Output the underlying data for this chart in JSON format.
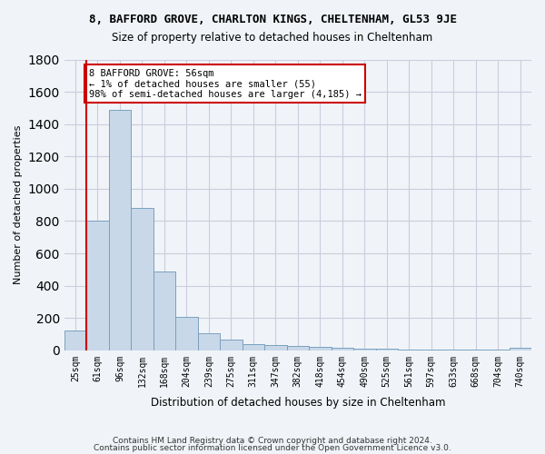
{
  "title1": "8, BAFFORD GROVE, CHARLTON KINGS, CHELTENHAM, GL53 9JE",
  "title2": "Size of property relative to detached houses in Cheltenham",
  "xlabel": "Distribution of detached houses by size in Cheltenham",
  "ylabel": "Number of detached properties",
  "footer1": "Contains HM Land Registry data © Crown copyright and database right 2024.",
  "footer2": "Contains public sector information licensed under the Open Government Licence v3.0.",
  "bin_labels": [
    "25sqm",
    "61sqm",
    "96sqm",
    "132sqm",
    "168sqm",
    "204sqm",
    "239sqm",
    "275sqm",
    "311sqm",
    "347sqm",
    "382sqm",
    "418sqm",
    "454sqm",
    "490sqm",
    "525sqm",
    "561sqm",
    "597sqm",
    "633sqm",
    "668sqm",
    "704sqm",
    "740sqm"
  ],
  "bar_values": [
    120,
    800,
    1490,
    880,
    490,
    205,
    105,
    65,
    40,
    35,
    28,
    20,
    15,
    10,
    8,
    5,
    4,
    3,
    2,
    2,
    15
  ],
  "bar_color": "#c8d8e8",
  "bar_edgecolor": "#7aa0c0",
  "grid_color": "#ccccdd",
  "annotation_text": "8 BAFFORD GROVE: 56sqm\n← 1% of detached houses are smaller (55)\n98% of semi-detached houses are larger (4,185) →",
  "annotation_box_color": "#ffffff",
  "annotation_box_edgecolor": "#cc0000",
  "vline_x": 0.5,
  "vline_color": "#cc0000",
  "ylim": [
    0,
    1800
  ],
  "yticks": [
    0,
    200,
    400,
    600,
    800,
    1000,
    1200,
    1400,
    1600,
    1800
  ],
  "background_color": "#f0f4f8",
  "plot_background": "#f0f4f8"
}
